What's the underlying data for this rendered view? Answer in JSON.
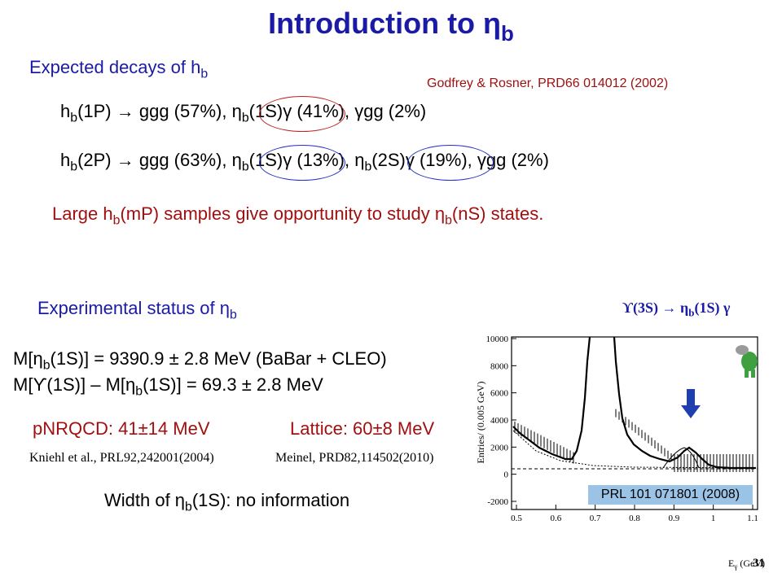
{
  "title": {
    "main": "Introduction to ",
    "sym": "η",
    "sub": "b"
  },
  "expected": {
    "text": "Expected decays of h",
    "sub": "b"
  },
  "reference": "Godfrey & Rosner, PRD66 014012 (2002)",
  "decay1": {
    "a": "h",
    "a_sub": "b",
    "b": "(1P) → ggg (57%), ",
    "c": "η",
    "c_sub": "b",
    "d": "(1S)γ (41%), γgg (2%)"
  },
  "decay2": {
    "a": "h",
    "a_sub": "b",
    "b": "(2P) → ggg (63%), ",
    "c": "η",
    "c_sub": "b",
    "d": "(1S)γ (13%), ",
    "e": "η",
    "e_sub": "b",
    "f": "(2S)γ (19%), γgg (2%)"
  },
  "large_samples": {
    "a": "Large h",
    "a_sub": "b",
    "b": "(mP) samples give opportunity to study ",
    "c": "η",
    "c_sub": "b",
    "d": "(nS) states."
  },
  "experimental": {
    "text": "Experimental status of η",
    "sub": "b"
  },
  "upsilon_label": {
    "a": "ϒ(3S)  →  η",
    "sub": "b",
    "b": "(1S) γ"
  },
  "mass1": {
    "a": "M[η",
    "sub": "b",
    "b": "(1S)] = 9390.9 ± 2.8 MeV  (BaBar + CLEO)"
  },
  "mass2": {
    "a": "M[ϒ(1S)] – M[η",
    "sub": "b",
    "b": "(1S)] = 69.3 ± 2.8 MeV"
  },
  "pnrqcd": "pNRQCD: 41±14 MeV",
  "lattice": "Lattice: 60±8 MeV",
  "ref_kniehl": "Kniehl et al., PRL92,242001(2004)",
  "ref_meinel": "Meinel, PRD82,114502(2010)",
  "width": {
    "a": "Width of η",
    "sub": "b",
    "b": "(1S): no information"
  },
  "plot": {
    "legend": "PRL 101 071801 (2008)",
    "ylabel": "Entries/ (0.005 GeV)",
    "xlabel": "E",
    "xlabel_sub": "γ",
    "xlabel_unit": " (GeV)",
    "yticks": [
      "10000",
      "8000",
      "6000",
      "4000",
      "2000",
      "0",
      "-2000"
    ],
    "xticks": [
      "0.5",
      "0.6",
      "0.7",
      "0.8",
      "0.9",
      "1",
      "1.1"
    ]
  },
  "slide_number": "31",
  "colors": {
    "title": "#1a1aa6",
    "red": "#a01010",
    "ellipse_red": "#c02020",
    "ellipse_blue": "#2030c0",
    "arrow": "#1d3fb0",
    "legend_bg": "#9bc3e6"
  }
}
